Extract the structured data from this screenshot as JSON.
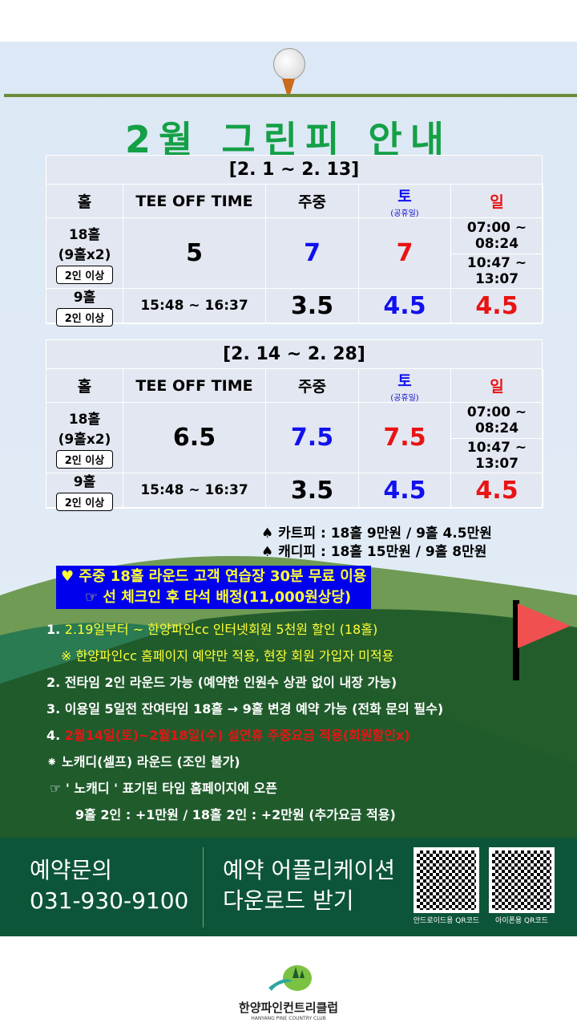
{
  "title": "2월 그린피 안내",
  "headers": {
    "hole": "홀",
    "tee": "TEE OFF   TIME",
    "weekday": "주중",
    "sat": "토",
    "sat_sub": "(공휴일)",
    "sun": "일"
  },
  "periods": [
    {
      "label": "[2. 1 ~ 2. 13]",
      "hole18": "18홀\n(9홀x2)",
      "hole9": "9홀",
      "badge": "2인 이상",
      "times": [
        "07:00  ~ 08:24",
        "10:47  ~ 13:07",
        "15:48  ~ 16:37"
      ],
      "p18": {
        "weekday": "5",
        "sat": "7",
        "sun": "7"
      },
      "p9": {
        "weekday": "3.5",
        "sat": "4.5",
        "sun": "4.5"
      }
    },
    {
      "label": "[2. 14 ~ 2. 28]",
      "hole18": "18홀\n(9홀x2)",
      "hole9": "9홀",
      "badge": "2인 이상",
      "times": [
        "07:00  ~ 08:24",
        "10:47  ~ 13:07",
        "15:48  ~ 16:37"
      ],
      "p18": {
        "weekday": "6.5",
        "sat": "7.5",
        "sun": "7.5"
      },
      "p9": {
        "weekday": "3.5",
        "sat": "4.5",
        "sun": "4.5"
      }
    }
  ],
  "fees": [
    "♠ 카트피 : 18홀    9만원  /  9홀 4.5만원",
    "♠ 캐디피 : 18홀  15만원  /  9홀    8만원"
  ],
  "promo": [
    "♥ 주중 18홀 라운드 고객 연습장 30분 무료 이용",
    "☞ 선 체크인 후 타석 배정(11,000원상당)"
  ],
  "notes": {
    "n1_num": "1. ",
    "n1": "2.19일부터 ~ 한양파인cc 인터넷회원 5천원 할인 (18홀)",
    "n1_sub": "※ 한양파인cc 홈페이지 예약만 적용, 현장 회원 가입자 미적용",
    "n2": "2. 전타임 2인 라운드 가능 (예약한 인원수 상관 없이 내장 가능)",
    "n3": "3. 이용일 5일전 잔여타임 18홀  →  9홀  변경 예약  가능 (전화 문의 필수)",
    "n4_num": "4. ",
    "n4": "2월14일(토)~2월18일(수) 설연휴 주중요금 적용(회원할인x)",
    "n5": "⁕  노캐디(셀프) 라운드 (조인 불가)",
    "n6": "☞  ' 노캐디 '  표기된 타임 홈페이지에 오픈",
    "n7": "9홀  2인 :  +1만원  / 18홀 2인 : +2만원 (추가요금 적용)"
  },
  "footer": {
    "inquiry": "예약문의",
    "phone": "031-930-9100",
    "app1": "예약 어플리케이션",
    "app2": "다운로드 받기",
    "qr_android": "안드로이드용 QR코드",
    "qr_iphone": "아이폰용 QR코드"
  },
  "logo": {
    "name": "한양파인컨트리클럽",
    "en": "HANYANG PINE COUNTRY CLUB"
  },
  "colors": {
    "title": "#14a046",
    "footer": "#0d5538",
    "sat": "#1111ee",
    "sun": "#e81414"
  }
}
